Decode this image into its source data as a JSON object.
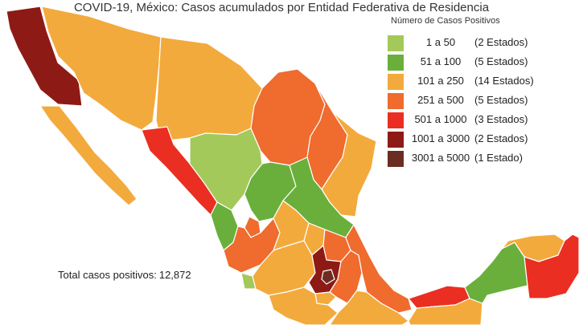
{
  "title": "COVID-19, México: Casos acumulados por Entidad Federativa de Residencia",
  "legend": {
    "title": "Número de Casos Positivos",
    "items": [
      {
        "range": "1 a 50",
        "count": "(2 Estados)",
        "color": "#a3c95a"
      },
      {
        "range": "51 a 100",
        "count": "(5 Estados)",
        "color": "#6aaf3b"
      },
      {
        "range": "101 a 250",
        "count": "(14 Estados)",
        "color": "#f3aa3c"
      },
      {
        "range": "251 a 500",
        "count": "(5 Estados)",
        "color": "#ef6b2e"
      },
      {
        "range": "501 a 1000",
        "count": "(3 Estados)",
        "color": "#ea2e22"
      },
      {
        "range": "1001 a 3000",
        "count": "(2 Estados)",
        "color": "#8e1a15"
      },
      {
        "range": "3001 a 5000",
        "count": "(1 Estado)",
        "color": "#6b2c22"
      }
    ]
  },
  "total": {
    "label": "Total casos positivos:",
    "value": "12,872"
  }
}
